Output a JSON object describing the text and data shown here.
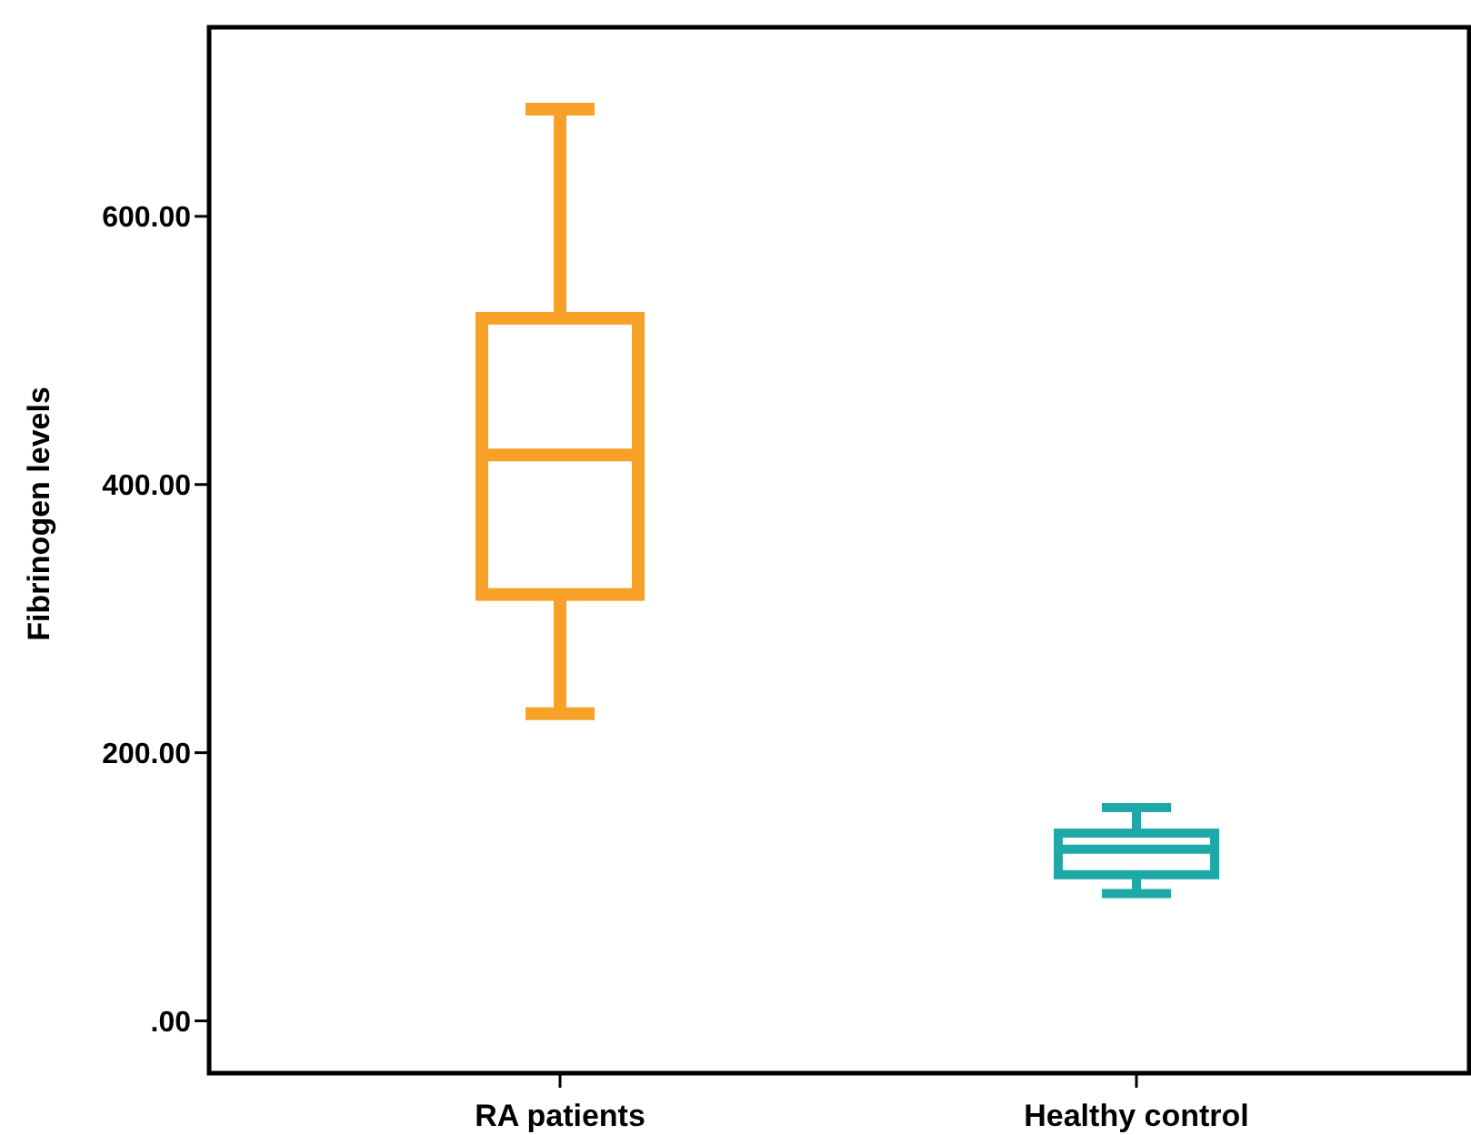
{
  "chart_data": {
    "type": "box",
    "ylabel": "Fibrinogen levels",
    "categories": [
      "RA patients",
      "Healthy control"
    ],
    "boxes": [
      {
        "low": 229,
        "q1": 318,
        "median": 422,
        "q3": 524,
        "high": 680
      },
      {
        "low": 95,
        "q1": 109,
        "median": 128,
        "q3": 140,
        "high": 159
      }
    ],
    "colors": [
      "#f7a128",
      "#1fa8a8"
    ],
    "ylim": [
      -39,
      741
    ],
    "yticks": [
      {
        "value": 0,
        "label": ".00"
      },
      {
        "value": 200,
        "label": "200.00"
      },
      {
        "value": 400,
        "label": "400.00"
      },
      {
        "value": 600,
        "label": "600.00"
      }
    ],
    "grid": false
  }
}
